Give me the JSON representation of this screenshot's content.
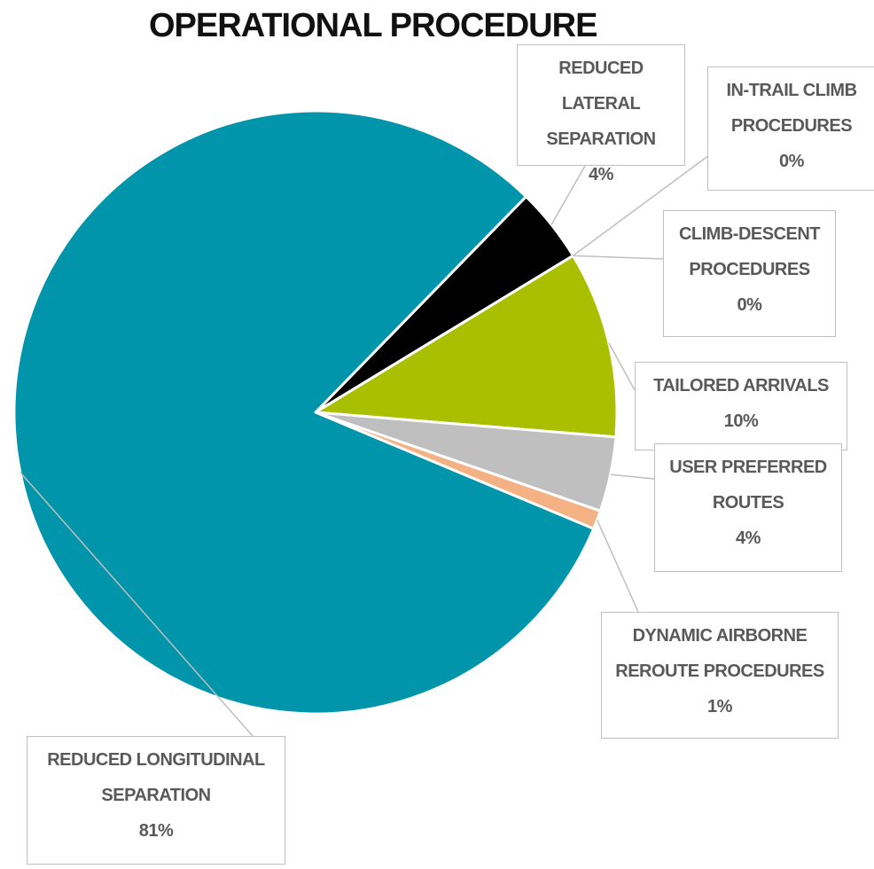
{
  "chart_data": {
    "type": "pie",
    "title": "OPERATIONAL PROCEDURE",
    "categories": [
      "REDUCED LATERAL SEPARATION",
      "IN-TRAIL CLIMB PROCEDURES",
      "CLIMB-DESCENT PROCEDURES",
      "TAILORED ARRIVALS",
      "USER PREFERRED ROUTES",
      "DYNAMIC AIRBORNE REROUTE PROCEDURES",
      "REDUCED LONGITUDINAL SEPARATION"
    ],
    "values": [
      4,
      0,
      0,
      10,
      4,
      1,
      81
    ],
    "value_labels": [
      "4%",
      "0%",
      "0%",
      "10%",
      "4%",
      "1%",
      "81%"
    ],
    "colors": [
      "#000000",
      "#5b9bd5",
      "#7f7f7f",
      "#a9bf00",
      "#bfbfbf",
      "#f4b183",
      "#0095aa"
    ]
  }
}
